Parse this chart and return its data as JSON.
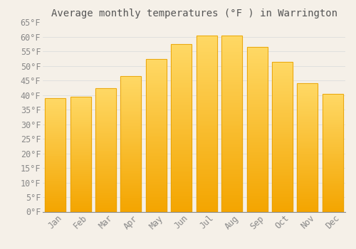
{
  "title": "Average monthly temperatures (°F ) in Warrington",
  "months": [
    "Jan",
    "Feb",
    "Mar",
    "Apr",
    "May",
    "Jun",
    "Jul",
    "Aug",
    "Sep",
    "Oct",
    "Nov",
    "Dec"
  ],
  "values": [
    39,
    39.5,
    42.5,
    46.5,
    52.5,
    57.5,
    60.5,
    60.5,
    56.5,
    51.5,
    44,
    40.5
  ],
  "bar_color_top": "#FFD966",
  "bar_color_bottom": "#F4A500",
  "bar_edge_color": "#E8A000",
  "background_color": "#F5F0E8",
  "grid_color": "#DDDDDD",
  "text_color": "#888888",
  "title_color": "#555555",
  "ylim": [
    0,
    65
  ],
  "yticks": [
    0,
    5,
    10,
    15,
    20,
    25,
    30,
    35,
    40,
    45,
    50,
    55,
    60,
    65
  ],
  "title_fontsize": 10,
  "tick_fontsize": 8.5,
  "bar_width": 0.82
}
